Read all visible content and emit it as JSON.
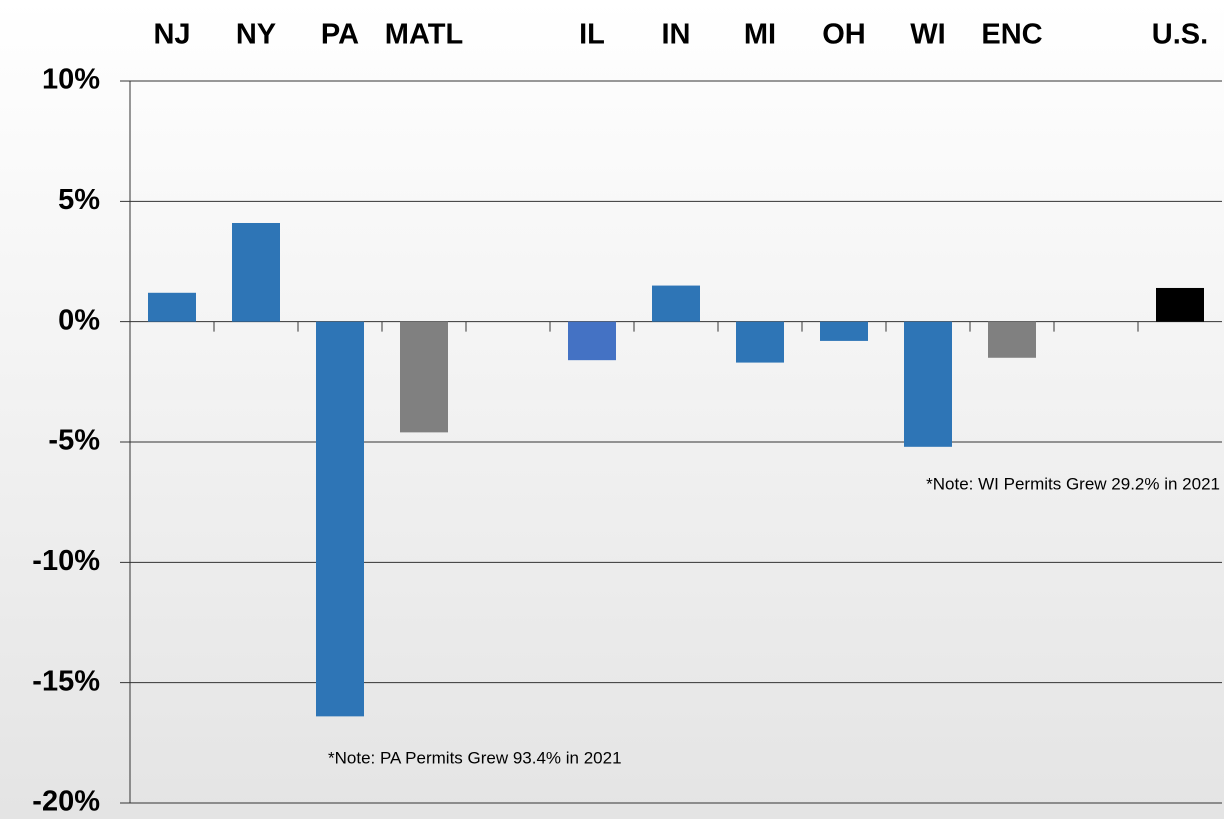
{
  "chart_data": {
    "type": "bar",
    "categories": [
      "NJ",
      "NY",
      "PA",
      "MATL",
      null,
      "IL",
      "IN",
      "MI",
      "OH",
      "WI",
      "ENC",
      null,
      "U.S."
    ],
    "values": [
      1.2,
      4.1,
      -16.4,
      -4.6,
      null,
      -1.6,
      1.5,
      -1.7,
      -0.8,
      -5.2,
      -1.5,
      null,
      1.4
    ],
    "colors": [
      "#2e75b6",
      "#2e75b6",
      "#2e75b6",
      "#808080",
      null,
      "#4472c4",
      "#2e75b6",
      "#2e75b6",
      "#2e75b6",
      "#2e75b6",
      "#808080",
      null,
      "#000000"
    ],
    "ylim": [
      -20,
      10
    ],
    "yticks": [
      {
        "value": -20,
        "label": "-20%"
      },
      {
        "value": -15,
        "label": "-15%"
      },
      {
        "value": -10,
        "label": "-10%"
      },
      {
        "value": -5,
        "label": "-5%"
      },
      {
        "value": 0,
        "label": "0%"
      },
      {
        "value": 5,
        "label": "5%"
      },
      {
        "value": 10,
        "label": "10%"
      }
    ],
    "grid": true,
    "annotations": [
      "*Note: WI Permits Grew 29.2% in 2021",
      "*Note: PA Permits Grew 93.4% in 2021"
    ]
  }
}
